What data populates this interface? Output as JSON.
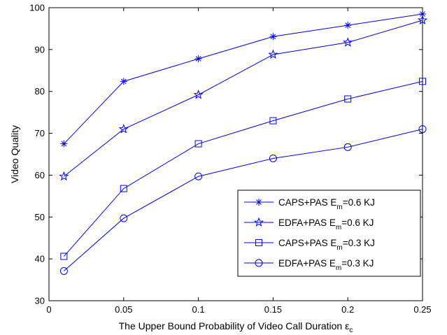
{
  "chart_data": {
    "type": "line",
    "title": "",
    "xlabel": "The Upper Bound Probability of Video Call Duration ε",
    "xlabel_sub": "c",
    "ylabel": "Video Quality",
    "xlim": [
      0,
      0.25
    ],
    "ylim": [
      30,
      100
    ],
    "xticks": [
      0,
      0.05,
      0.1,
      0.15,
      0.2,
      0.25
    ],
    "xtick_labels": [
      "0",
      "0.05",
      "0.1",
      "0.15",
      "0.2",
      "0.25"
    ],
    "yticks": [
      30,
      40,
      50,
      60,
      70,
      80,
      90,
      100
    ],
    "ytick_labels": [
      "30",
      "40",
      "50",
      "60",
      "70",
      "80",
      "90",
      "100"
    ],
    "grid": false,
    "legend_position": "bottom-right",
    "line_color": "#0000ff",
    "x": [
      0.01,
      0.05,
      0.1,
      0.15,
      0.2,
      0.25
    ],
    "series": [
      {
        "name_prefix": "CAPS+PAS E",
        "name_sub": "m",
        "name_suffix": "=0.6 KJ",
        "marker": "asterisk",
        "values": [
          67.5,
          82.4,
          87.8,
          93.1,
          95.8,
          98.5
        ]
      },
      {
        "name_prefix": "EDFA+PAS E",
        "name_sub": "m",
        "name_suffix": "=0.6 KJ",
        "marker": "star",
        "values": [
          59.7,
          71.0,
          79.2,
          88.8,
          91.7,
          97.0
        ]
      },
      {
        "name_prefix": "CAPS+PAS E",
        "name_sub": "m",
        "name_suffix": "=0.3 KJ",
        "marker": "square",
        "values": [
          40.6,
          56.8,
          67.5,
          73.0,
          78.2,
          82.4
        ]
      },
      {
        "name_prefix": "EDFA+PAS E",
        "name_sub": "m",
        "name_suffix": "=0.3 KJ",
        "marker": "circle",
        "values": [
          37.1,
          49.7,
          59.7,
          64.0,
          66.7,
          71.0
        ]
      }
    ]
  }
}
